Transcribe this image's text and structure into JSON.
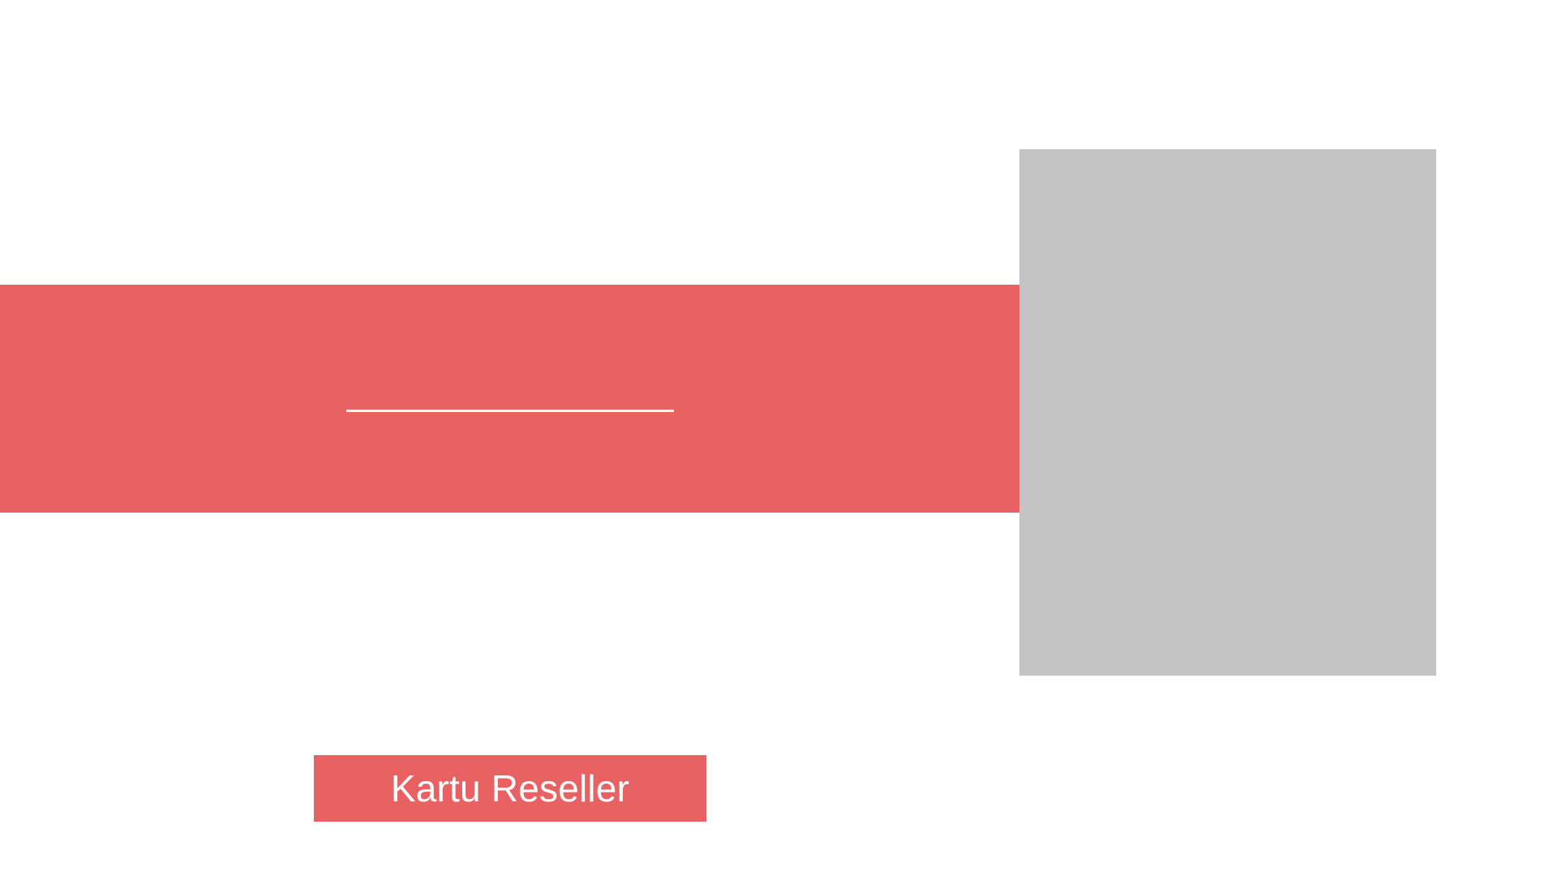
{
  "colors": {
    "background": "#ffffff",
    "accent": "#e86264",
    "placeholder": "#c4c4c4",
    "divider": "#ffffff",
    "button_text": "#ffffff"
  },
  "hero": {
    "headline": ""
  },
  "cta": {
    "label": "Kartu Reseller"
  }
}
